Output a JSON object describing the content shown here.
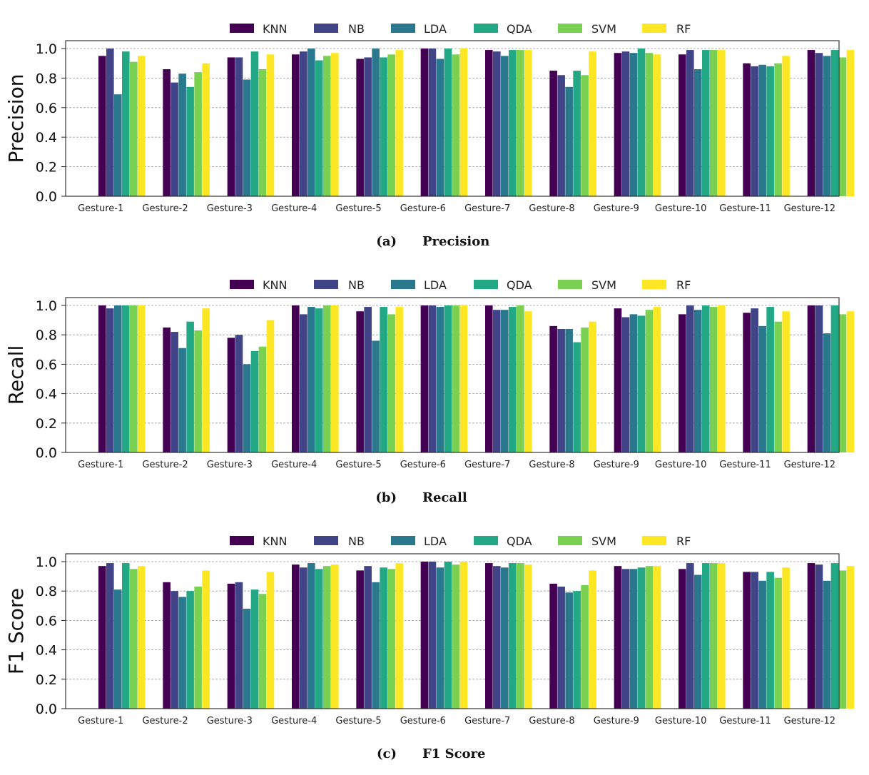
{
  "colors": {
    "KNN": "#440154",
    "NB": "#414487",
    "LDA": "#2a788e",
    "QDA": "#22a884",
    "SVM": "#7ad151",
    "RF": "#fde725"
  },
  "chart_data": [
    {
      "type": "bar",
      "title": "",
      "xlabel": "",
      "ylabel": "Precision",
      "ylim": [
        0,
        1.0
      ],
      "grid": "horizontal dashed",
      "legend_position": "top-center",
      "caption_label": "(a)",
      "caption_text": "Precision",
      "categories": [
        "Gesture-1",
        "Gesture-2",
        "Gesture-3",
        "Gesture-4",
        "Gesture-5",
        "Gesture-6",
        "Gesture-7",
        "Gesture-8",
        "Gesture-9",
        "Gesture-10",
        "Gesture-11",
        "Gesture-12"
      ],
      "y_ticks": [
        "0.0",
        "0.2",
        "0.4",
        "0.6",
        "0.8",
        "1.0"
      ],
      "series": [
        {
          "name": "KNN",
          "values": [
            0.95,
            0.86,
            0.94,
            0.96,
            0.93,
            1.0,
            0.99,
            0.85,
            0.97,
            0.96,
            0.9,
            0.99
          ]
        },
        {
          "name": "NB",
          "values": [
            1.0,
            0.77,
            0.94,
            0.98,
            0.94,
            1.0,
            0.98,
            0.82,
            0.98,
            0.99,
            0.88,
            0.97
          ]
        },
        {
          "name": "LDA",
          "values": [
            0.69,
            0.83,
            0.79,
            1.0,
            1.0,
            0.93,
            0.95,
            0.74,
            0.97,
            0.86,
            0.89,
            0.95
          ]
        },
        {
          "name": "QDA",
          "values": [
            0.98,
            0.74,
            0.98,
            0.92,
            0.94,
            1.0,
            0.99,
            0.85,
            1.0,
            0.99,
            0.88,
            0.99
          ]
        },
        {
          "name": "SVM",
          "values": [
            0.91,
            0.84,
            0.86,
            0.95,
            0.96,
            0.96,
            0.99,
            0.82,
            0.97,
            0.99,
            0.9,
            0.94
          ]
        },
        {
          "name": "RF",
          "values": [
            0.95,
            0.9,
            0.96,
            0.97,
            0.99,
            1.0,
            0.99,
            0.98,
            0.96,
            0.99,
            0.95,
            0.99
          ]
        }
      ]
    },
    {
      "type": "bar",
      "title": "",
      "xlabel": "",
      "ylabel": "Recall",
      "ylim": [
        0,
        1.0
      ],
      "grid": "horizontal dashed",
      "legend_position": "top-center",
      "caption_label": "(b)",
      "caption_text": "Recall",
      "categories": [
        "Gesture-1",
        "Gesture-2",
        "Gesture-3",
        "Gesture-4",
        "Gesture-5",
        "Gesture-6",
        "Gesture-7",
        "Gesture-8",
        "Gesture-9",
        "Gesture-10",
        "Gesture-11",
        "Gesture-12"
      ],
      "y_ticks": [
        "0.0",
        "0.2",
        "0.4",
        "0.6",
        "0.8",
        "1.0"
      ],
      "series": [
        {
          "name": "KNN",
          "values": [
            1.0,
            0.85,
            0.78,
            1.0,
            0.96,
            1.0,
            1.0,
            0.86,
            0.98,
            0.94,
            0.95,
            1.0
          ]
        },
        {
          "name": "NB",
          "values": [
            0.98,
            0.82,
            0.8,
            0.94,
            0.99,
            1.0,
            0.97,
            0.84,
            0.92,
            1.0,
            0.98,
            1.0
          ]
        },
        {
          "name": "LDA",
          "values": [
            1.0,
            0.71,
            0.6,
            0.99,
            0.76,
            0.99,
            0.97,
            0.84,
            0.94,
            0.97,
            0.86,
            0.81
          ]
        },
        {
          "name": "QDA",
          "values": [
            1.0,
            0.89,
            0.69,
            0.98,
            0.99,
            1.0,
            0.99,
            0.75,
            0.93,
            1.0,
            0.99,
            1.0
          ]
        },
        {
          "name": "SVM",
          "values": [
            1.0,
            0.83,
            0.72,
            1.0,
            0.94,
            1.0,
            1.0,
            0.85,
            0.97,
            0.99,
            0.89,
            0.94
          ]
        },
        {
          "name": "RF",
          "values": [
            1.0,
            0.98,
            0.9,
            1.0,
            0.99,
            1.0,
            0.96,
            0.89,
            0.99,
            1.0,
            0.96,
            0.96
          ]
        }
      ]
    },
    {
      "type": "bar",
      "title": "",
      "xlabel": "",
      "ylabel": "F1 Score",
      "ylim": [
        0,
        1.0
      ],
      "grid": "horizontal dashed",
      "legend_position": "top-center",
      "caption_label": "(c)",
      "caption_text": "F1 Score",
      "categories": [
        "Gesture-1",
        "Gesture-2",
        "Gesture-3",
        "Gesture-4",
        "Gesture-5",
        "Gesture-6",
        "Gesture-7",
        "Gesture-8",
        "Gesture-9",
        "Gesture-10",
        "Gesture-11",
        "Gesture-12"
      ],
      "y_ticks": [
        "0.0",
        "0.2",
        "0.4",
        "0.6",
        "0.8",
        "1.0"
      ],
      "series": [
        {
          "name": "KNN",
          "values": [
            0.97,
            0.86,
            0.85,
            0.98,
            0.94,
            1.0,
            0.99,
            0.85,
            0.97,
            0.95,
            0.93,
            0.99
          ]
        },
        {
          "name": "NB",
          "values": [
            0.99,
            0.8,
            0.86,
            0.96,
            0.97,
            1.0,
            0.97,
            0.83,
            0.95,
            0.99,
            0.93,
            0.98
          ]
        },
        {
          "name": "LDA",
          "values": [
            0.81,
            0.76,
            0.68,
            0.99,
            0.86,
            0.96,
            0.96,
            0.79,
            0.95,
            0.91,
            0.87,
            0.87
          ]
        },
        {
          "name": "QDA",
          "values": [
            0.99,
            0.8,
            0.81,
            0.95,
            0.96,
            1.0,
            0.99,
            0.8,
            0.96,
            0.99,
            0.93,
            0.99
          ]
        },
        {
          "name": "SVM",
          "values": [
            0.95,
            0.83,
            0.78,
            0.97,
            0.95,
            0.98,
            0.99,
            0.84,
            0.97,
            0.99,
            0.89,
            0.94
          ]
        },
        {
          "name": "RF",
          "values": [
            0.97,
            0.94,
            0.93,
            0.98,
            0.99,
            1.0,
            0.98,
            0.94,
            0.97,
            0.99,
            0.96,
            0.97
          ]
        }
      ]
    }
  ]
}
